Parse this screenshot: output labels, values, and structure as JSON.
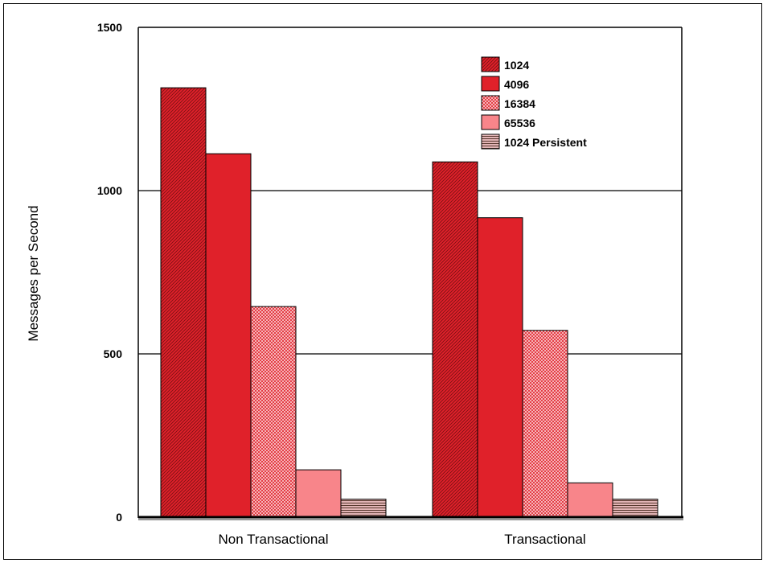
{
  "chart_data": {
    "type": "bar",
    "title": "",
    "xlabel": "",
    "ylabel": "Messages per Second",
    "ylim": [
      0,
      1500
    ],
    "yticks": [
      0,
      500,
      1000,
      1500
    ],
    "grid": true,
    "legend_position": "top-right",
    "categories": [
      "Non Transactional",
      "Transactional"
    ],
    "series": [
      {
        "name": "1024",
        "color": "#e0212a",
        "pattern": "diagonal-hatch",
        "values": [
          1315,
          1088
        ]
      },
      {
        "name": "4096",
        "color": "#e0212a",
        "pattern": "solid",
        "values": [
          1113,
          917
        ]
      },
      {
        "name": "16384",
        "color": "#f7a8ad",
        "pattern": "crosshatch",
        "values": [
          645,
          572
        ]
      },
      {
        "name": "65536",
        "color": "#f8858a",
        "pattern": "solid",
        "values": [
          145,
          105
        ]
      },
      {
        "name": "1024 Persistent",
        "color": "#8a6a5e",
        "pattern": "horizontal-lines",
        "values": [
          55,
          55
        ]
      }
    ]
  }
}
